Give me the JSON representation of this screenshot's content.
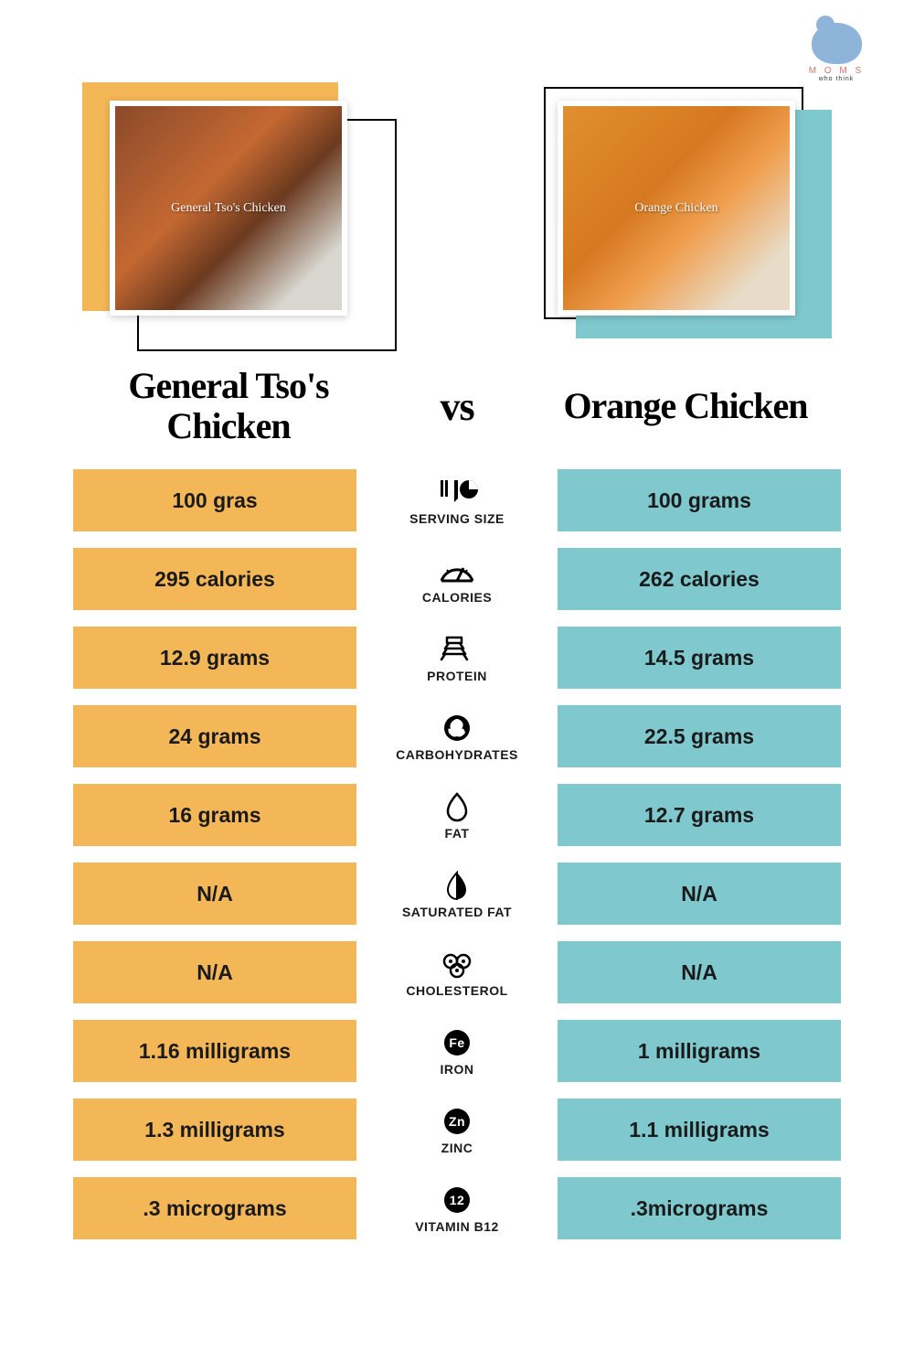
{
  "logo": {
    "line1": "M O M S",
    "line2": "who think"
  },
  "left_title": "General Tso's Chicken",
  "right_title": "Orange Chicken",
  "vs": "vs",
  "colors": {
    "left_accent": "#f4b758",
    "right_accent": "#7fc9ce",
    "left_cell": "#f4b758",
    "right_cell": "#7fc9ce"
  },
  "photos": {
    "left_alt": "General Tso's Chicken",
    "right_alt": "Orange Chicken"
  },
  "rows": [
    {
      "icon": "serving",
      "label": "SERVING SIZE",
      "left": "100 gras",
      "right": "100 grams"
    },
    {
      "icon": "calories",
      "label": "CALORIES",
      "left": "295 calories",
      "right": "262 calories"
    },
    {
      "icon": "protein",
      "label": "PROTEIN",
      "left": "12.9 grams",
      "right": "14.5 grams"
    },
    {
      "icon": "carbs",
      "label": "CARBOHYDRATES",
      "left": "24 grams",
      "right": "22.5 grams"
    },
    {
      "icon": "fat",
      "label": "FAT",
      "left": "16 grams",
      "right": "12.7 grams"
    },
    {
      "icon": "satfat",
      "label": "SATURATED FAT",
      "left": "N/A",
      "right": "N/A"
    },
    {
      "icon": "cholesterol",
      "label": "CHOLESTEROL",
      "left": "N/A",
      "right": "N/A"
    },
    {
      "icon": "iron",
      "label": "IRON",
      "left": "1.16 milligrams",
      "right": "1 milligrams"
    },
    {
      "icon": "zinc",
      "label": "ZINC",
      "left": "1.3 milligrams",
      "right": "1.1 milligrams"
    },
    {
      "icon": "b12",
      "label": "VITAMIN B12",
      "left": ".3 micrograms",
      "right": ".3micrograms"
    }
  ]
}
